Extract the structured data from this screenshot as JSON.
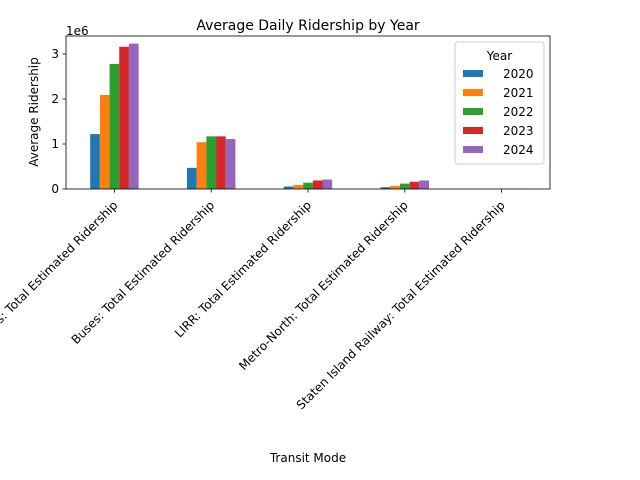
{
  "chart_data": {
    "type": "bar",
    "title": "Average Daily Ridership by Year",
    "xlabel": "Transit Mode",
    "ylabel": "Average Ridership",
    "y_offset_text": "1e6",
    "ylim": [
      0,
      3400000
    ],
    "yticks": [
      0,
      1000000,
      2000000,
      3000000
    ],
    "ytick_labels": [
      "0",
      "1",
      "2",
      "3"
    ],
    "grid": false,
    "legend": {
      "title": "Year",
      "placement": "top-right"
    },
    "categories": [
      "Subways: Total Estimated Ridership",
      "Buses: Total Estimated Ridership",
      "LIRR: Total Estimated Ridership",
      "Metro-North: Total Estimated Ridership",
      "Staten Island Railway: Total Estimated Ridership"
    ],
    "series": [
      {
        "name": "2020",
        "color": "#1f77b4",
        "values": [
          1220000,
          470000,
          55000,
          40000,
          2000
        ]
      },
      {
        "name": "2021",
        "color": "#ff7f0e",
        "values": [
          2090000,
          1040000,
          90000,
          70000,
          3000
        ]
      },
      {
        "name": "2022",
        "color": "#2ca02c",
        "values": [
          2780000,
          1170000,
          140000,
          120000,
          5000
        ]
      },
      {
        "name": "2023",
        "color": "#d62728",
        "values": [
          3160000,
          1170000,
          190000,
          160000,
          6000
        ]
      },
      {
        "name": "2024",
        "color": "#9467bd",
        "values": [
          3230000,
          1110000,
          210000,
          190000,
          6500
        ]
      }
    ]
  }
}
